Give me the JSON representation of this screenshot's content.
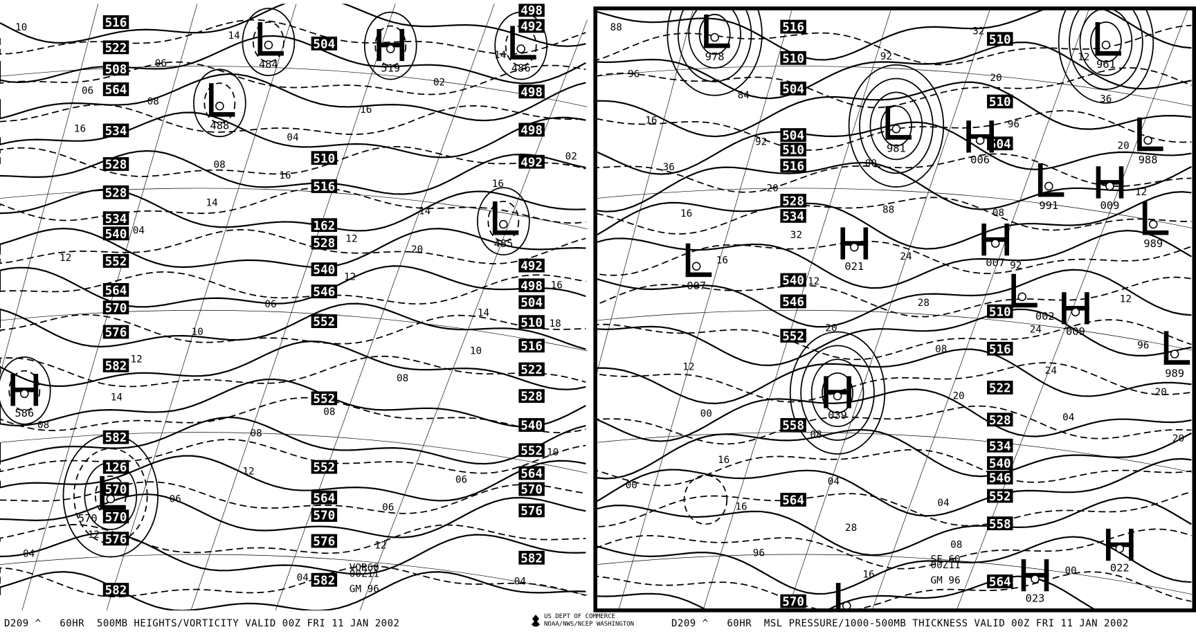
{
  "left_panel": {
    "caption": "D209 ^   60HR  500MB HEIGHTS/VORTICITY VALID 00Z FRI 11 JAN 2002",
    "height_labels": [
      "516",
      "522",
      "508",
      "564",
      "534",
      "528",
      "528",
      "534",
      "540",
      "552",
      "564",
      "570",
      "576",
      "582",
      "582",
      "126",
      "570",
      "570",
      "576",
      "582",
      "504",
      "510",
      "516",
      "162",
      "528",
      "540",
      "546",
      "552",
      "552",
      "552",
      "564",
      "570",
      "576",
      "582",
      "498",
      "492",
      "498",
      "498",
      "492",
      "492",
      "498",
      "504",
      "510",
      "516",
      "522",
      "528",
      "540",
      "552",
      "564",
      "570",
      "576",
      "582"
    ],
    "centers": [
      {
        "type": "L",
        "value": "484"
      },
      {
        "type": "H",
        "value": "519"
      },
      {
        "type": "L",
        "value": "486"
      },
      {
        "type": "L",
        "value": "488"
      },
      {
        "type": "L",
        "value": "485"
      },
      {
        "type": "H",
        "value": "586"
      },
      {
        "type": "L",
        "value": "570"
      }
    ],
    "contour_labels": [
      "10",
      "08",
      "16",
      "20",
      "18",
      "14",
      "12",
      "12",
      "14",
      "16",
      "14",
      "12",
      "10",
      "08",
      "06",
      "04",
      "02",
      "02",
      "04",
      "06",
      "08",
      "10",
      "12",
      "14",
      "16",
      "16",
      "12",
      "10",
      "08",
      "06",
      "04",
      "06",
      "04",
      "14",
      "16",
      "12",
      "08",
      "06",
      "04",
      "06",
      "08",
      "12",
      "14"
    ],
    "stamp": [
      "VOR60",
      "00Z11",
      "GM 96"
    ]
  },
  "right_panel": {
    "caption": "D209 ^   60HR  MSL PRESSURE/1000-500MB THICKNESS VALID 00Z FRI 11 JAN 2002",
    "thickness_labels": [
      "516",
      "510",
      "504",
      "504",
      "510",
      "516",
      "528",
      "534",
      "540",
      "546",
      "552",
      "558",
      "564",
      "570",
      "510",
      "510",
      "504",
      "510",
      "516",
      "522",
      "528",
      "534",
      "540",
      "546",
      "552",
      "558",
      "564"
    ],
    "centers": [
      {
        "type": "L",
        "value": "978"
      },
      {
        "type": "L",
        "value": "981"
      },
      {
        "type": "H",
        "value": "006"
      },
      {
        "type": "L",
        "value": "991"
      },
      {
        "type": "H",
        "value": "009"
      },
      {
        "type": "L",
        "value": "988"
      },
      {
        "type": "L",
        "value": "961"
      },
      {
        "type": "H",
        "value": "021"
      },
      {
        "type": "H",
        "value": "007"
      },
      {
        "type": "L",
        "value": "007"
      },
      {
        "type": "L",
        "value": "002"
      },
      {
        "type": "H",
        "value": "009"
      },
      {
        "type": "L",
        "value": "989"
      },
      {
        "type": "L",
        "value": "989"
      },
      {
        "type": "H",
        "value": "039"
      },
      {
        "type": "H",
        "value": "023"
      },
      {
        "type": "H",
        "value": "022"
      },
      {
        "type": "L",
        "value": ""
      }
    ],
    "contour_labels": [
      "88",
      "84",
      "00",
      "08",
      "12",
      "12",
      "08",
      "04",
      "00",
      "96",
      "92",
      "88",
      "92",
      "96",
      "00",
      "04",
      "08",
      "12",
      "16",
      "20",
      "24",
      "24",
      "20",
      "16",
      "28",
      "32",
      "36",
      "36",
      "32",
      "28",
      "24",
      "20",
      "16",
      "16",
      "20",
      "20",
      "16",
      "12",
      "08",
      "04",
      "00",
      "96",
      "92",
      "96",
      "12",
      "16",
      "20",
      "20"
    ],
    "stamp": [
      "SF 60",
      "00Z11",
      "GM 96"
    ]
  },
  "footer": {
    "agency_line1": "US DEPT OF COMMERCE",
    "agency_line2": "NOAA/NWS/NCEP WASHINGTON"
  },
  "colors": {
    "ink": "#000000",
    "background": "#ffffff"
  }
}
